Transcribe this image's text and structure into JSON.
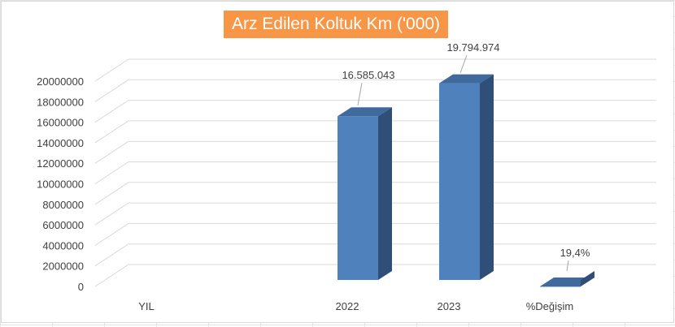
{
  "chart_data": {
    "type": "bar",
    "title": "Arz Edilen Koltuk Km ('000)",
    "categories": [
      "YIL",
      "2022",
      "2023",
      "%Değişim"
    ],
    "values": [
      0,
      16585043,
      19794974,
      19.4
    ],
    "data_labels": [
      "",
      "16.585.043",
      "19.794.974",
      "19,4%"
    ],
    "ylim": [
      0,
      20000000
    ],
    "y_ticks": [
      "0",
      "2000000",
      "4000000",
      "6000000",
      "8000000",
      "10000000",
      "12000000",
      "14000000",
      "16000000",
      "18000000",
      "20000000"
    ],
    "xlabel": "",
    "ylabel": "",
    "grid": true,
    "style": "3d-column",
    "colors": {
      "bar_front": "#4f81bd",
      "bar_top": "#416a9c",
      "bar_side": "#2f4f79",
      "title_bg": "#f79646",
      "title_text": "#ffffff",
      "gridline": "#d9d9d9",
      "text": "#404040"
    }
  }
}
